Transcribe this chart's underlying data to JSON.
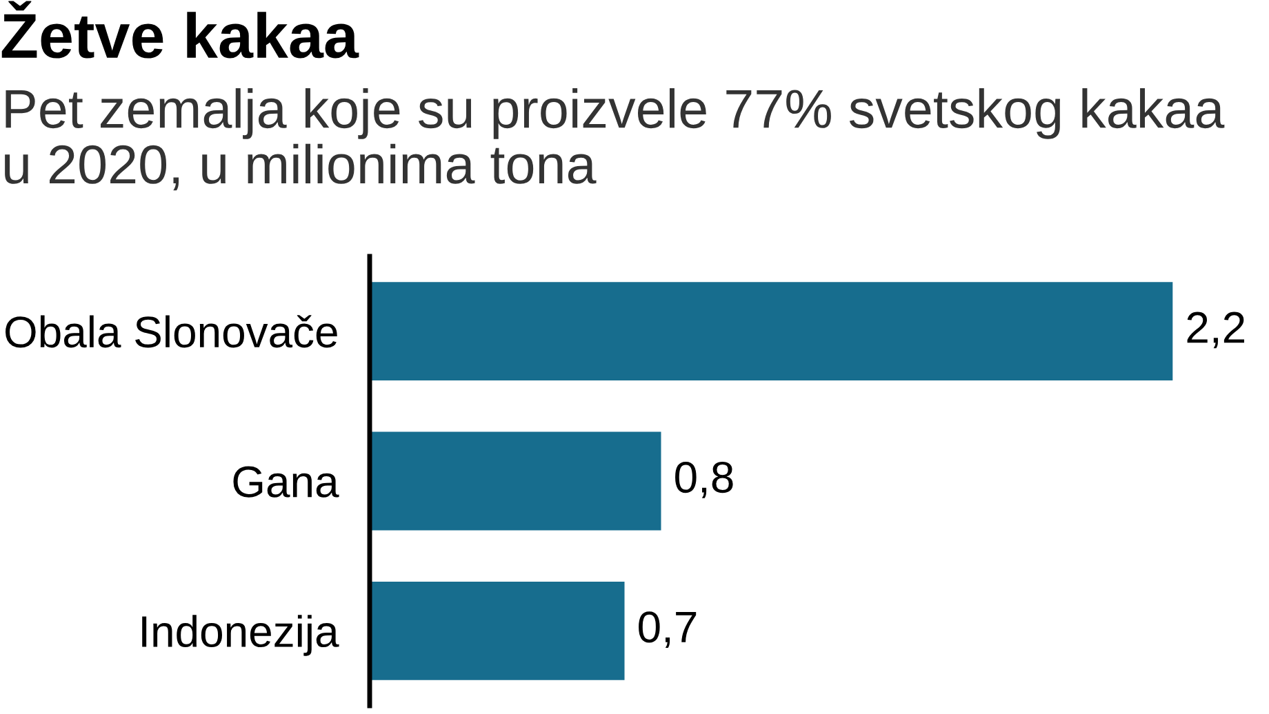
{
  "chart_data": {
    "type": "bar",
    "orientation": "horizontal",
    "title": "Žetve kakaa",
    "subtitle": "Pet zemalja koje su proizvele 77% svetskog kakaa u 2020, u milionima tona",
    "categories": [
      "Obala Slonovače",
      "Gana",
      "Indonezija"
    ],
    "values": [
      2.2,
      0.8,
      0.7
    ],
    "value_labels": [
      "2,2",
      "0,8",
      "0,7"
    ],
    "color": "#176d8e",
    "tick_labels": "y"
  }
}
